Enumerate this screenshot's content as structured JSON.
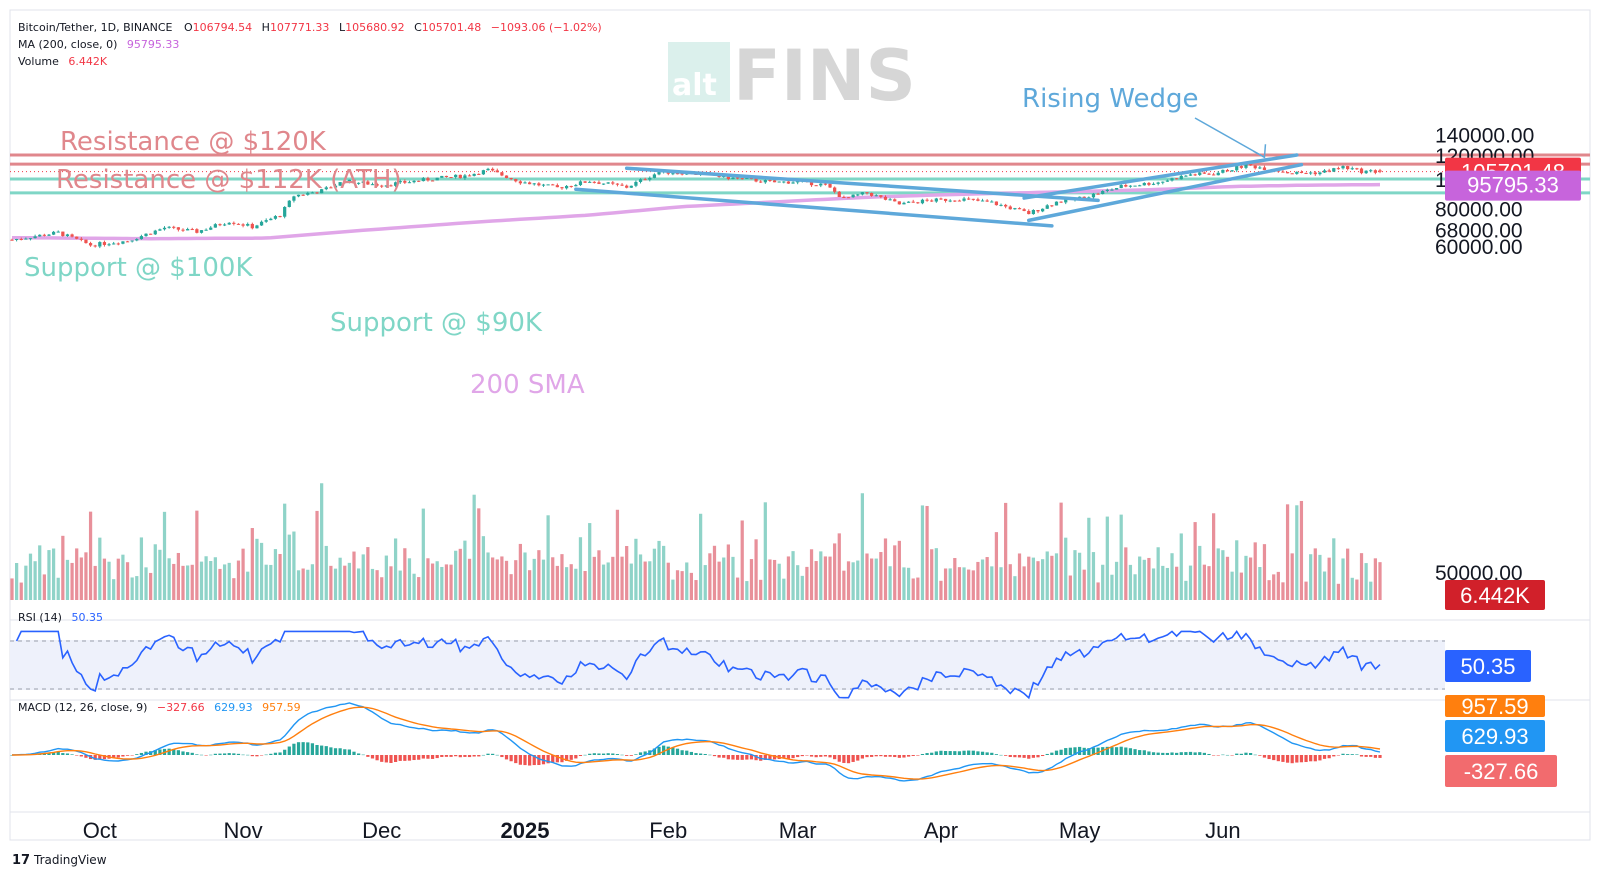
{
  "header": {
    "symbol": "Bitcoin/Tether, 1D, BINANCE",
    "o_label": "O",
    "o_val": "106794.54",
    "h_label": "H",
    "h_val": "107771.33",
    "l_label": "L",
    "l_val": "105680.92",
    "c_label": "C",
    "c_val": "105701.48",
    "change": "−1093.06 (−1.02%)",
    "ma_label": "MA (200, close, 0)",
    "ma_val": "95795.33",
    "vol_label": "Volume",
    "vol_val": "6.442K"
  },
  "logo": {
    "prefix": "alt",
    "name": "FINS"
  },
  "footer": {
    "brand": "TradingView"
  },
  "annotations": {
    "res120": "Resistance @ $120K",
    "res112": "Resistance @ $112K (ATH)",
    "sup100": "Support @ $100K",
    "sup90": "Support @ $90K",
    "sma": "200 SMA",
    "wedge": "Rising Wedge"
  },
  "tags": {
    "price": "105701.48",
    "ma": "95795.33",
    "volume": "6.442K",
    "rsi": "50.35",
    "macd_signal": "957.59",
    "macd_line": "629.93",
    "macd_hist": "-327.66"
  },
  "rsi_header": {
    "label": "RSI (14)",
    "value": "50.35"
  },
  "macd_header": {
    "label": "MACD (12, 26, close, 9)",
    "hist": "−327.66",
    "macd": "629.93",
    "signal": "957.59"
  },
  "colors": {
    "up": "#26a69a",
    "down": "#ef5350",
    "up_vol": "#8fd3c8",
    "down_vol": "#e8909a",
    "resistance": "#e0878c",
    "support": "#7fd6c6",
    "sma": "#e0a6e8",
    "channel": "#5ea8da",
    "rsi": "#2962ff",
    "macd": "#2196f3",
    "signal": "#ff7f0e",
    "price_tag": "#f23645",
    "ma_tag": "#c764dc",
    "vol_tag": "#d1202a",
    "rsi_tag": "#2962ff"
  },
  "chart_data": {
    "type": "candlestick",
    "x_ticks": [
      "Oct",
      "Nov",
      "Dec",
      "2025",
      "Feb",
      "Mar",
      "Apr",
      "May",
      "Jun"
    ],
    "y_ticks": [
      "140000.00",
      "120000.00",
      "100000.00",
      "80000.00",
      "68000.00",
      "60000.00",
      "50000.00"
    ],
    "y_scale": "log",
    "price_range": [
      51000,
      145000
    ],
    "levels": {
      "resistance": [
        120000,
        112000
      ],
      "support": [
        100000,
        90000
      ]
    },
    "waypoints": [
      {
        "d": 0,
        "p": 63000
      },
      {
        "d": 10,
        "p": 66500
      },
      {
        "d": 17,
        "p": 60500
      },
      {
        "d": 25,
        "p": 62500
      },
      {
        "d": 33,
        "p": 69000
      },
      {
        "d": 40,
        "p": 67000
      },
      {
        "d": 47,
        "p": 72500
      },
      {
        "d": 52,
        "p": 69500
      },
      {
        "d": 58,
        "p": 76000
      },
      {
        "d": 61,
        "p": 88000
      },
      {
        "d": 67,
        "p": 91500
      },
      {
        "d": 72,
        "p": 98500
      },
      {
        "d": 80,
        "p": 95500
      },
      {
        "d": 85,
        "p": 97500
      },
      {
        "d": 92,
        "p": 100500
      },
      {
        "d": 98,
        "p": 102500
      },
      {
        "d": 103,
        "p": 107000
      },
      {
        "d": 110,
        "p": 98000
      },
      {
        "d": 118,
        "p": 93500
      },
      {
        "d": 125,
        "p": 98500
      },
      {
        "d": 133,
        "p": 94000
      },
      {
        "d": 140,
        "p": 105500
      },
      {
        "d": 148,
        "p": 104500
      },
      {
        "d": 155,
        "p": 101000
      },
      {
        "d": 165,
        "p": 97500
      },
      {
        "d": 170,
        "p": 98000
      },
      {
        "d": 176,
        "p": 95500
      },
      {
        "d": 180,
        "p": 86000
      },
      {
        "d": 185,
        "p": 90000
      },
      {
        "d": 192,
        "p": 82500
      },
      {
        "d": 197,
        "p": 84500
      },
      {
        "d": 205,
        "p": 86000
      },
      {
        "d": 212,
        "p": 83500
      },
      {
        "d": 220,
        "p": 77000
      },
      {
        "d": 226,
        "p": 84000
      },
      {
        "d": 232,
        "p": 87000
      },
      {
        "d": 240,
        "p": 94500
      },
      {
        "d": 248,
        "p": 97500
      },
      {
        "d": 255,
        "p": 103500
      },
      {
        "d": 260,
        "p": 104000
      },
      {
        "d": 267,
        "p": 111000
      },
      {
        "d": 272,
        "p": 108000
      },
      {
        "d": 277,
        "p": 104500
      },
      {
        "d": 283,
        "p": 105000
      },
      {
        "d": 288,
        "p": 109500
      },
      {
        "d": 292,
        "p": 106000
      },
      {
        "d": 296,
        "p": 105700
      }
    ],
    "sma_200": [
      {
        "d": 0,
        "p": 64000
      },
      {
        "d": 30,
        "p": 63500
      },
      {
        "d": 55,
        "p": 63800
      },
      {
        "d": 75,
        "p": 67500
      },
      {
        "d": 100,
        "p": 72000
      },
      {
        "d": 125,
        "p": 76000
      },
      {
        "d": 145,
        "p": 81000
      },
      {
        "d": 165,
        "p": 84000
      },
      {
        "d": 185,
        "p": 87000
      },
      {
        "d": 205,
        "p": 89000
      },
      {
        "d": 225,
        "p": 90500
      },
      {
        "d": 245,
        "p": 92000
      },
      {
        "d": 265,
        "p": 94500
      },
      {
        "d": 280,
        "p": 95400
      },
      {
        "d": 296,
        "p": 95800
      }
    ],
    "channels": {
      "descending_upper": [
        {
          "d": 133,
          "p": 108500
        },
        {
          "d": 235,
          "p": 85000
        }
      ],
      "descending_lower": [
        {
          "d": 122,
          "p": 92500
        },
        {
          "d": 225,
          "p": 70000
        }
      ],
      "wedge_lower": [
        {
          "d": 220,
          "p": 73000
        },
        {
          "d": 279,
          "p": 111500
        }
      ],
      "wedge_upper": [
        {
          "d": 219,
          "p": 86500
        },
        {
          "d": 278,
          "p": 120000
        }
      ]
    },
    "rsi": {
      "range": [
        20,
        80
      ],
      "bands": [
        70,
        30
      ],
      "last": 50.35
    },
    "macd": {
      "macd": 629.93,
      "signal": 957.59,
      "histogram": -327.66
    }
  }
}
